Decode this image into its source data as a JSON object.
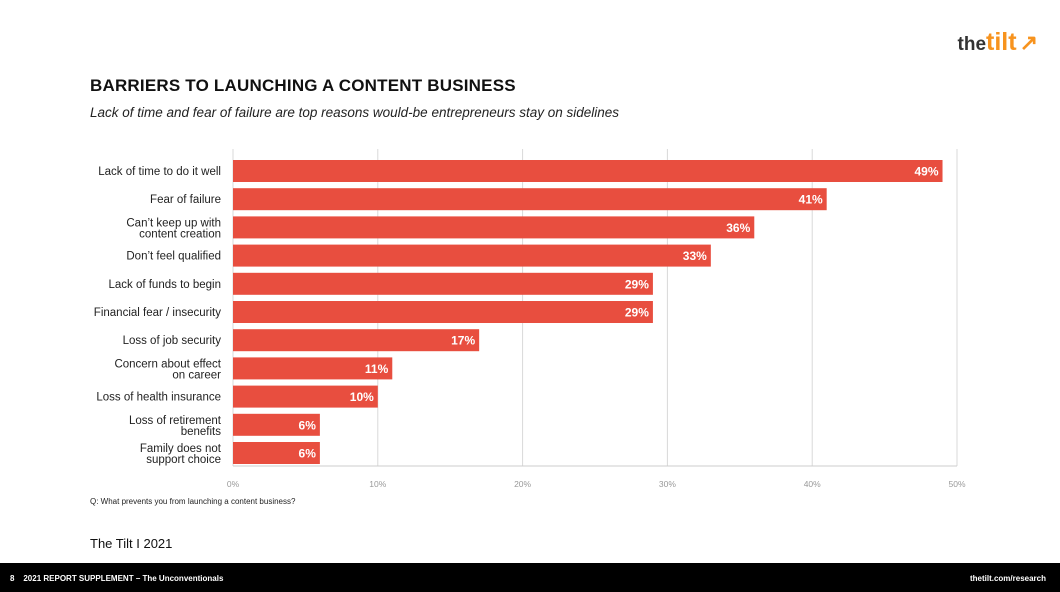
{
  "logo": {
    "the": "the",
    "tilt": "tilt",
    "arrow": "↗"
  },
  "title": "BARRIERS TO LAUNCHING A CONTENT BUSINESS",
  "subtitle": "Lack of time and fear of failure are top reasons would-be entrepreneurs stay on sidelines",
  "question": "Q: What prevents you from launching a content business?",
  "brand_line": "The Tilt  I  2021",
  "footer": {
    "page": "8",
    "label": "2021 REPORT SUPPLEMENT – The Unconventionals",
    "url": "thetilt.com/research"
  },
  "chart_data": {
    "type": "bar",
    "orientation": "horizontal",
    "categories": [
      [
        "Lack of time to do it well"
      ],
      [
        "Fear of failure"
      ],
      [
        "Can’t keep up with",
        "content creation"
      ],
      [
        "Don’t feel qualified"
      ],
      [
        "Lack of funds to begin"
      ],
      [
        "Financial fear / insecurity"
      ],
      [
        "Loss of job security"
      ],
      [
        "Concern about effect",
        "on career"
      ],
      [
        "Loss of health insurance"
      ],
      [
        "Loss of retirement",
        "benefits"
      ],
      [
        "Family does not",
        "support choice"
      ]
    ],
    "values": [
      49,
      41,
      36,
      33,
      29,
      29,
      17,
      11,
      10,
      6,
      6
    ],
    "value_labels": [
      "49%",
      "41%",
      "36%",
      "33%",
      "29%",
      "29%",
      "17%",
      "11%",
      "10%",
      "6%",
      "6%"
    ],
    "xlim": [
      0,
      50
    ],
    "xticks": [
      0,
      10,
      20,
      30,
      40,
      50
    ],
    "xtick_labels": [
      "0%",
      "10%",
      "20%",
      "30%",
      "40%",
      "50%"
    ],
    "grid": true,
    "bar_color": "#e84e3f"
  }
}
